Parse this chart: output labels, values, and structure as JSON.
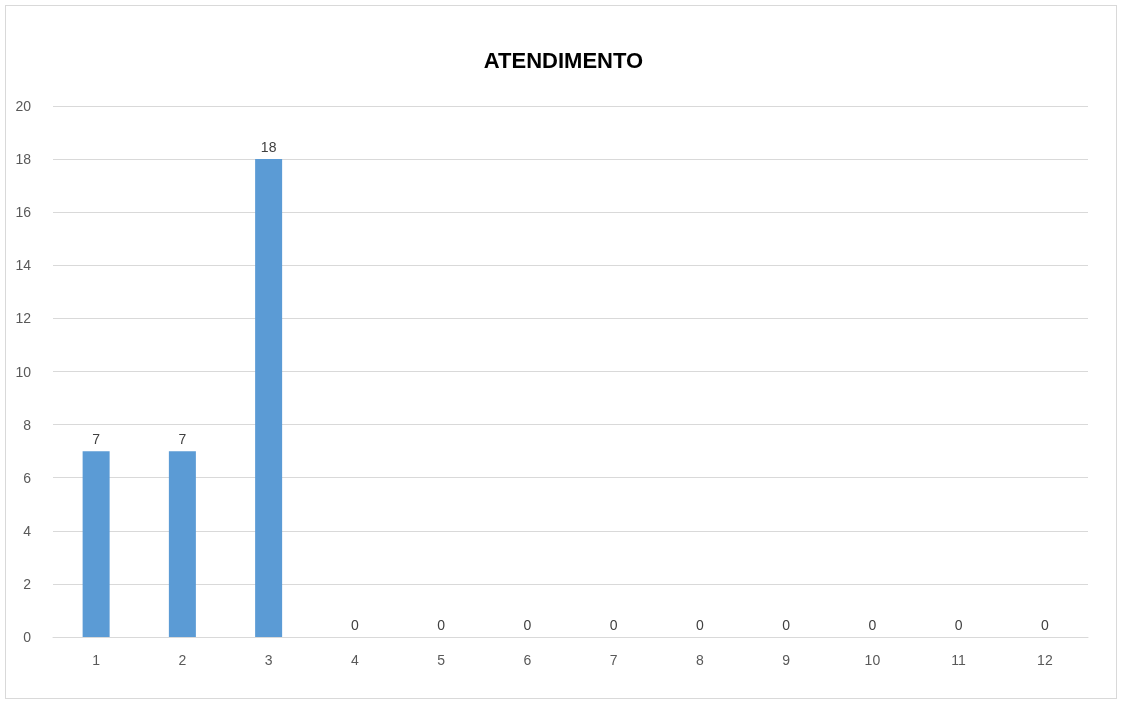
{
  "chart_data": {
    "type": "bar",
    "title": "ATENDIMENTO",
    "categories": [
      "1",
      "2",
      "3",
      "4",
      "5",
      "6",
      "7",
      "8",
      "9",
      "10",
      "11",
      "12"
    ],
    "values": [
      7,
      7,
      18,
      0,
      0,
      0,
      0,
      0,
      0,
      0,
      0,
      0
    ],
    "color": "#5b9bd5",
    "ylim": [
      0,
      20
    ],
    "yticks": [
      0,
      2,
      4,
      6,
      8,
      10,
      12,
      14,
      16,
      18,
      20
    ],
    "grid": "y",
    "data_labels": true
  }
}
